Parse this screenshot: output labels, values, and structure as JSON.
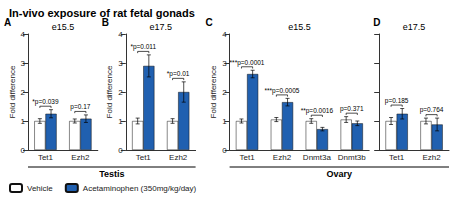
{
  "title": "In-vivo exposure of rat fetal gonads",
  "legend": "lower left",
  "grid": false,
  "chart_data": [
    {
      "type": "bar",
      "label": "A",
      "subtitle": "e15.5",
      "group": "Testis",
      "ylabel": "Fold difference",
      "categories": [
        "Tet1",
        "Ezh2"
      ],
      "series": [
        {
          "name": "Vehicle",
          "color": "#ffffff",
          "values": [
            1.0,
            1.0
          ],
          "errors": [
            0.08,
            0.07
          ]
        },
        {
          "name": "Acetaminophen (350mg/kg/day)",
          "color": "#2060b0",
          "values": [
            1.25,
            1.08
          ],
          "errors": [
            0.14,
            0.13
          ]
        }
      ],
      "annotations": [
        "*p=0.039",
        "p=0.17"
      ],
      "ylim": [
        0,
        4
      ],
      "yticks": [
        0,
        1,
        2,
        3,
        4
      ]
    },
    {
      "type": "bar",
      "label": "B",
      "subtitle": "e17.5",
      "group": "Testis",
      "ylabel": "Fold difference",
      "categories": [
        "Tet1",
        "Ezh2"
      ],
      "series": [
        {
          "name": "Vehicle",
          "color": "#ffffff",
          "values": [
            1.0,
            1.0
          ],
          "errors": [
            0.1,
            0.08
          ]
        },
        {
          "name": "Acetaminophen (350mg/kg/day)",
          "color": "#2060b0",
          "values": [
            2.9,
            2.0
          ],
          "errors": [
            0.38,
            0.35
          ]
        }
      ],
      "annotations": [
        "*p=0.011",
        "*p=0.01"
      ],
      "ylim": [
        0,
        4
      ],
      "yticks": [
        0,
        1,
        2,
        3,
        4
      ]
    },
    {
      "type": "bar",
      "label": "C",
      "subtitle": "e15.5",
      "group": "Ovary",
      "ylabel": "Fold difference",
      "categories": [
        "Tet1",
        "Ezh2",
        "Dnmt3a",
        "Dnmt3b"
      ],
      "series": [
        {
          "name": "Vehicle",
          "color": "#ffffff",
          "values": [
            1.0,
            1.05,
            1.0,
            1.05
          ],
          "errors": [
            0.07,
            0.07,
            0.08,
            0.1
          ]
        },
        {
          "name": "Acetaminophen (350mg/kg/day)",
          "color": "#2060b0",
          "values": [
            2.62,
            1.65,
            0.72,
            0.92
          ],
          "errors": [
            0.13,
            0.13,
            0.06,
            0.08
          ]
        }
      ],
      "annotations": [
        "***p=0.0001",
        "***p=0.0005",
        "**p=0.0016",
        "p=0.371"
      ],
      "ylim": [
        0,
        4
      ],
      "yticks": [
        0,
        1,
        2,
        3,
        4
      ]
    },
    {
      "type": "bar",
      "label": "D",
      "subtitle": "e17.5",
      "group": "Ovary",
      "categories": [
        "Tet1",
        "Ezh2"
      ],
      "series": [
        {
          "name": "Vehicle",
          "color": "#ffffff",
          "values": [
            1.0,
            1.0
          ],
          "errors": [
            0.12,
            0.1
          ]
        },
        {
          "name": "Acetaminophen (350mg/kg/day)",
          "color": "#2060b0",
          "values": [
            1.25,
            0.88
          ],
          "errors": [
            0.18,
            0.22
          ]
        }
      ],
      "annotations": [
        "p=0.185",
        "p=0.764"
      ],
      "ylim": [
        0,
        4
      ],
      "yticks": [
        0,
        1,
        2,
        3,
        4
      ],
      "tick_labels": "x"
    }
  ]
}
